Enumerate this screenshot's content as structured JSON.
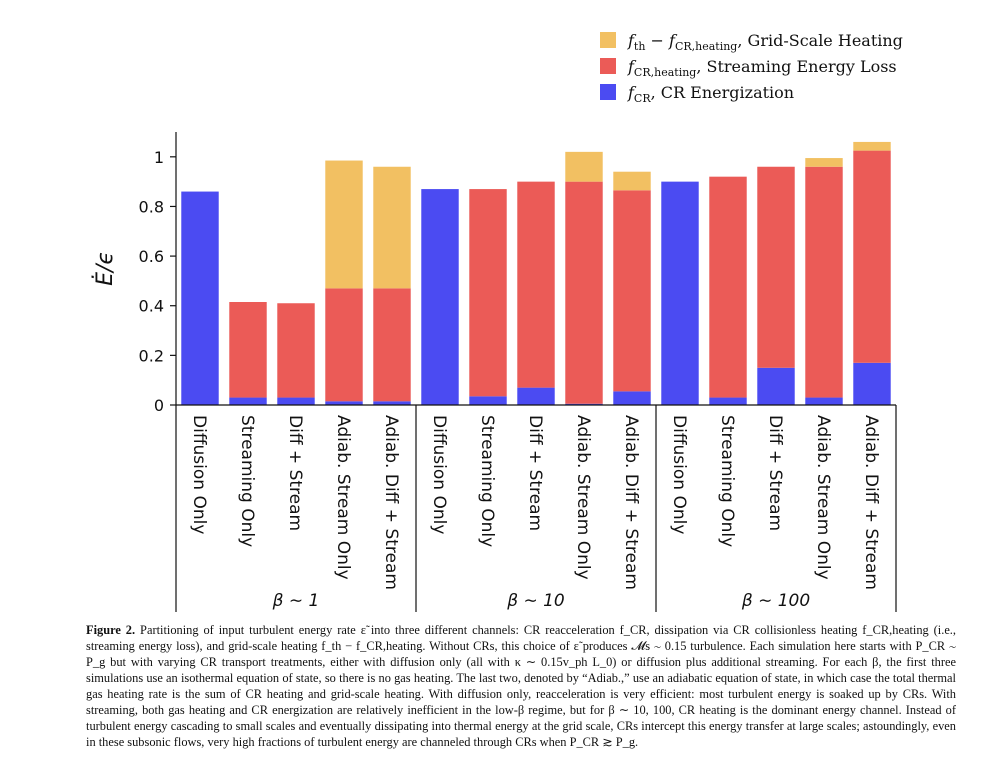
{
  "chart_data": {
    "type": "bar",
    "stacked": true,
    "ylabel": "Ė/ϵ",
    "ylim": [
      0,
      1.1
    ],
    "yticks": [
      0,
      0.2,
      0.4,
      0.6,
      0.8,
      1
    ],
    "ytick_labels": [
      "0",
      "0.2",
      "0.4",
      "0.6",
      "0.8",
      "1"
    ],
    "grid": false,
    "legend_position": "top-right",
    "categories": [
      "Diffusion Only",
      "Streaming Only",
      "Diff + Stream",
      "Adiab. Stream Only",
      "Adiab. Diff + Stream",
      "Diffusion Only",
      "Streaming Only",
      "Diff + Stream",
      "Adiab. Stream Only",
      "Adiab. Diff + Stream",
      "Diffusion Only",
      "Streaming Only",
      "Diff + Stream",
      "Adiab. Stream Only",
      "Adiab. Diff + Stream"
    ],
    "groups": [
      {
        "label": "β ∼ 1",
        "start": 0,
        "end": 4
      },
      {
        "label": "β ∼ 10",
        "start": 5,
        "end": 9
      },
      {
        "label": "β ∼ 100",
        "start": 10,
        "end": 14
      }
    ],
    "series": [
      {
        "name": "f_CR, CR Energization",
        "color": "#4b4bf2",
        "values": [
          0.86,
          0.03,
          0.03,
          0.015,
          0.015,
          0.87,
          0.035,
          0.07,
          0.005,
          0.055,
          0.9,
          0.03,
          0.15,
          0.03,
          0.17
        ]
      },
      {
        "name": "f_CR,heating, Streaming Energy Loss",
        "color": "#eb5b57",
        "values": [
          0,
          0.385,
          0.38,
          0.455,
          0.455,
          0,
          0.835,
          0.83,
          0.895,
          0.81,
          0,
          0.89,
          0.81,
          0.93,
          0.855
        ]
      },
      {
        "name": "f_th − f_CR,heating, Grid-Scale Heating",
        "color": "#f2c062",
        "values": [
          0,
          0,
          0,
          0.515,
          0.49,
          0,
          0,
          0,
          0.12,
          0.075,
          0,
          0,
          0,
          0.035,
          0.035
        ]
      }
    ]
  },
  "legend": [
    {
      "main": "f",
      "sub": "th",
      "mid": " − f",
      "sub2": "CR,heating",
      "text": ", Grid-Scale Heating",
      "color": "#f2c062"
    },
    {
      "main": "f",
      "sub": "CR,heating",
      "mid": "",
      "sub2": "",
      "text": ", Streaming Energy Loss",
      "color": "#eb5b57"
    },
    {
      "main": "f",
      "sub": "CR",
      "mid": "",
      "sub2": "",
      "text": ", CR Energization",
      "color": "#4b4bf2"
    }
  ],
  "caption": {
    "label": "Figure 2.",
    "text": "Partitioning of input turbulent energy rate ε̃ into three different channels: CR reacceleration f_CR, dissipation via CR collisionless heating f_CR,heating (i.e., streaming energy loss), and grid-scale heating f_th − f_CR,heating. Without CRs, this choice of ε̃ produces 𝓜s ∼ 0.15 turbulence. Each simulation here starts with P_CR ∼ P_g but with varying CR transport treatments, either with diffusion only (all with κ ∼ 0.15v_ph L_0) or diffusion plus additional streaming. For each β, the first three simulations use an isothermal equation of state, so there is no gas heating. The last two, denoted by “Adiab.,” use an adiabatic equation of state, in which case the total thermal gas heating rate is the sum of CR heating and grid-scale heating. With diffusion only, reacceleration is very efficient: most turbulent energy is soaked up by CRs. With streaming, both gas heating and CR energization are relatively inefficient in the low-β regime, but for β ∼ 10, 100, CR heating is the dominant energy channel. Instead of turbulent energy cascading to small scales and eventually dissipating into thermal energy at the grid scale, CRs intercept this energy transfer at large scales; astoundingly, even in these subsonic flows, very high fractions of turbulent energy are channeled through CRs when P_CR ≳ P_g."
  }
}
